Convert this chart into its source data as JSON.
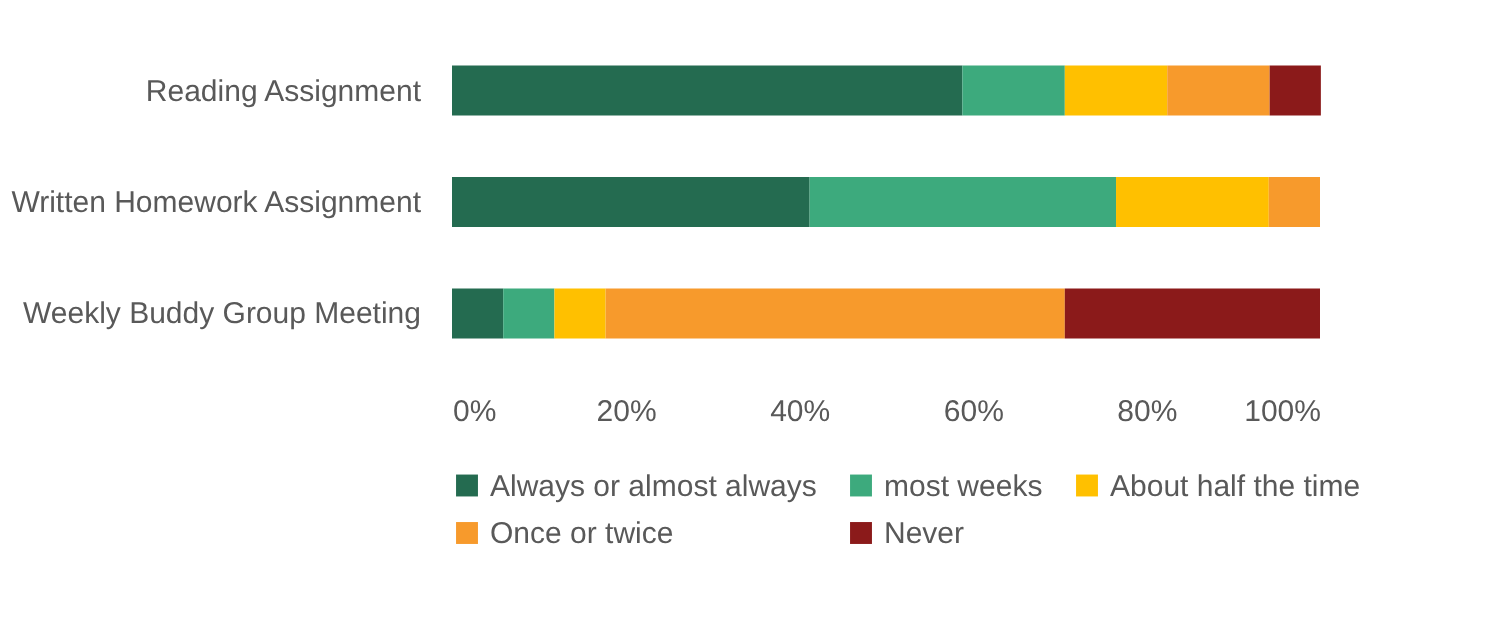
{
  "chart_data": {
    "type": "bar",
    "orientation": "horizontal",
    "stacked": true,
    "categories": [
      "Reading Assignment",
      "Written Homework Assignment",
      "Weekly Buddy Group Meeting"
    ],
    "series": [
      {
        "name": "Always or almost always",
        "color": "#246b50",
        "values": [
          58.8,
          41.2,
          5.9
        ]
      },
      {
        "name": "most weeks",
        "color": "#3daa7d",
        "values": [
          11.8,
          35.3,
          5.9
        ]
      },
      {
        "name": "About half the time",
        "color": "#ffc000",
        "values": [
          11.8,
          17.6,
          5.9
        ]
      },
      {
        "name": "Once or twice",
        "color": "#f79a2c",
        "values": [
          11.8,
          5.9,
          52.9
        ]
      },
      {
        "name": "Never",
        "color": "#8b1a1a",
        "values": [
          5.9,
          0,
          29.4
        ]
      }
    ],
    "xlim": [
      0,
      100
    ],
    "xticks": [
      {
        "value": 0,
        "label": "0%"
      },
      {
        "value": 20,
        "label": "20%"
      },
      {
        "value": 40,
        "label": "40%"
      },
      {
        "value": 60,
        "label": "60%"
      },
      {
        "value": 80,
        "label": "80%"
      },
      {
        "value": 100,
        "label": "100%"
      }
    ],
    "grid": false,
    "legend": "bottom"
  }
}
